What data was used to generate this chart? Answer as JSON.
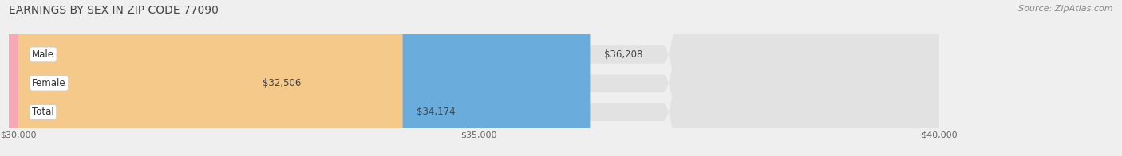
{
  "title": "EARNINGS BY SEX IN ZIP CODE 77090",
  "source": "Source: ZipAtlas.com",
  "categories": [
    "Male",
    "Female",
    "Total"
  ],
  "values": [
    36208,
    32506,
    34174
  ],
  "bar_colors": [
    "#6aacdc",
    "#f4a8b8",
    "#f5c98a"
  ],
  "labels": [
    "$36,208",
    "$32,506",
    "$34,174"
  ],
  "xmin": 30000,
  "xmax": 40000,
  "xticks": [
    30000,
    35000,
    40000
  ],
  "xticklabels": [
    "$30,000",
    "$35,000",
    "$40,000"
  ],
  "background_color": "#efefef",
  "bar_bg_color": "#e2e2e2",
  "title_fontsize": 10,
  "source_fontsize": 8,
  "label_fontsize": 8.5,
  "cat_fontsize": 8.5
}
